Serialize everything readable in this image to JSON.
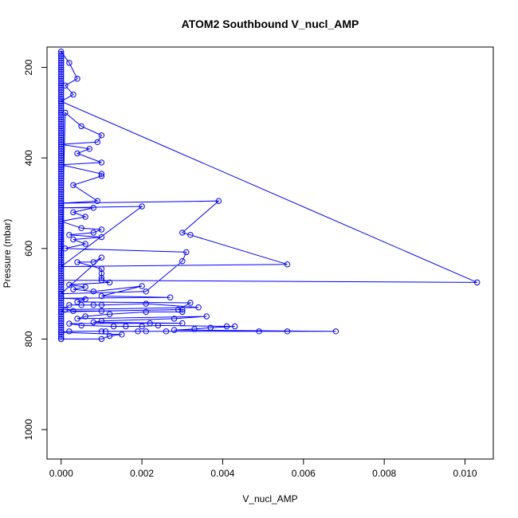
{
  "chart_data": {
    "type": "line",
    "title": "ATOM2 Southbound V_nucl_AMP",
    "xlabel": "V_nucl_AMP",
    "ylabel": "Pressure (mbar)",
    "xlim": [
      -0.00035,
      0.0107
    ],
    "ylim": [
      1065,
      155
    ],
    "y_inverted": true,
    "x_ticks": [
      0.0,
      0.002,
      0.004,
      0.006,
      0.008,
      0.01
    ],
    "x_tick_labels": [
      "0.000",
      "0.002",
      "0.004",
      "0.006",
      "0.008",
      "0.010"
    ],
    "y_ticks": [
      200,
      400,
      600,
      800,
      1000
    ],
    "y_tick_labels": [
      "200",
      "400",
      "600",
      "800",
      "1000"
    ],
    "grid": false,
    "series": [
      {
        "color": "#0000ff",
        "marker": "open-circle",
        "points": [
          [
            0.0,
            800
          ],
          [
            0.0,
            795
          ],
          [
            0.0,
            790
          ],
          [
            0.0,
            785
          ],
          [
            0.0,
            780
          ],
          [
            0.0,
            775
          ],
          [
            0.0,
            770
          ],
          [
            0.0,
            765
          ],
          [
            0.0,
            760
          ],
          [
            0.0,
            755
          ],
          [
            0.0,
            750
          ],
          [
            0.0,
            745
          ],
          [
            0.0,
            740
          ],
          [
            0.0,
            735
          ],
          [
            0.0,
            730
          ],
          [
            0.0,
            725
          ],
          [
            0.0,
            720
          ],
          [
            0.0,
            715
          ],
          [
            0.0,
            710
          ],
          [
            0.0,
            705
          ],
          [
            0.0,
            700
          ],
          [
            0.0,
            695
          ],
          [
            0.0,
            690
          ],
          [
            0.0,
            685
          ],
          [
            0.0,
            680
          ],
          [
            0.0,
            675
          ],
          [
            0.0,
            670
          ],
          [
            0.0,
            665
          ],
          [
            0.0,
            660
          ],
          [
            0.0,
            655
          ],
          [
            0.0,
            650
          ],
          [
            0.0,
            645
          ],
          [
            0.0,
            640
          ],
          [
            0.0,
            635
          ],
          [
            0.0,
            630
          ],
          [
            0.0,
            625
          ],
          [
            0.0,
            620
          ],
          [
            0.0,
            615
          ],
          [
            0.0,
            610
          ],
          [
            0.0,
            605
          ],
          [
            0.0,
            600
          ],
          [
            0.0,
            595
          ],
          [
            0.0,
            590
          ],
          [
            0.0,
            585
          ],
          [
            0.0,
            580
          ],
          [
            0.0,
            575
          ],
          [
            0.0,
            570
          ],
          [
            0.0,
            565
          ],
          [
            0.0,
            560
          ],
          [
            0.0,
            555
          ],
          [
            0.0,
            550
          ],
          [
            0.0,
            545
          ],
          [
            0.0,
            540
          ],
          [
            0.0,
            535
          ],
          [
            0.0,
            530
          ],
          [
            0.0,
            525
          ],
          [
            0.0,
            520
          ],
          [
            0.0,
            515
          ],
          [
            0.0,
            510
          ],
          [
            0.0,
            505
          ],
          [
            0.0,
            500
          ],
          [
            0.0,
            495
          ],
          [
            0.0,
            490
          ],
          [
            0.0,
            485
          ],
          [
            0.0,
            480
          ],
          [
            0.0,
            475
          ],
          [
            0.0,
            470
          ],
          [
            0.0,
            465
          ],
          [
            0.0,
            460
          ],
          [
            0.0,
            455
          ],
          [
            0.0,
            450
          ],
          [
            0.0,
            445
          ],
          [
            0.0,
            440
          ],
          [
            0.0,
            435
          ],
          [
            0.0,
            430
          ],
          [
            0.0,
            425
          ],
          [
            0.0,
            420
          ],
          [
            0.0,
            415
          ],
          [
            0.0,
            410
          ],
          [
            0.0,
            405
          ],
          [
            0.0,
            400
          ],
          [
            0.0,
            395
          ],
          [
            0.0,
            390
          ],
          [
            0.0,
            385
          ],
          [
            0.0,
            380
          ],
          [
            0.0,
            375
          ],
          [
            0.0,
            370
          ],
          [
            0.0,
            365
          ],
          [
            0.0,
            360
          ],
          [
            0.0,
            355
          ],
          [
            0.0,
            350
          ],
          [
            0.0,
            345
          ],
          [
            0.0,
            340
          ],
          [
            0.0,
            335
          ],
          [
            0.0,
            330
          ],
          [
            0.0,
            325
          ],
          [
            0.0,
            320
          ],
          [
            0.0,
            315
          ],
          [
            0.0,
            310
          ],
          [
            0.0,
            305
          ],
          [
            0.0,
            300
          ],
          [
            0.0,
            295
          ],
          [
            0.0,
            290
          ],
          [
            0.0,
            285
          ],
          [
            0.0,
            280
          ],
          [
            0.0,
            275
          ],
          [
            0.0,
            270
          ],
          [
            0.0,
            265
          ],
          [
            0.0,
            260
          ],
          [
            0.0,
            255
          ],
          [
            0.0,
            250
          ],
          [
            0.0,
            245
          ],
          [
            0.0,
            240
          ],
          [
            0.0,
            235
          ],
          [
            0.0,
            230
          ],
          [
            0.0,
            225
          ],
          [
            0.0,
            220
          ],
          [
            0.0,
            215
          ],
          [
            0.0,
            210
          ],
          [
            0.0,
            205
          ],
          [
            0.0,
            200
          ],
          [
            0.0,
            195
          ],
          [
            0.0,
            190
          ],
          [
            0.0,
            185
          ],
          [
            0.0,
            180
          ],
          [
            0.0,
            175
          ],
          [
            0.0,
            170
          ],
          [
            0.0,
            165
          ],
          [
            0.0002,
            190
          ],
          [
            0.0004,
            225
          ],
          [
            0.0001,
            240
          ],
          [
            0.0003,
            260
          ],
          [
            0.0,
            275
          ],
          [
            0.0103,
            675
          ],
          [
            0.0,
            670
          ],
          [
            0.0001,
            300
          ],
          [
            0.0005,
            330
          ],
          [
            0.001,
            350
          ],
          [
            0.0009,
            365
          ],
          [
            0.0,
            370
          ],
          [
            0.0007,
            380
          ],
          [
            0.0004,
            390
          ],
          [
            0.001,
            410
          ],
          [
            0.0,
            415
          ],
          [
            0.001,
            435
          ],
          [
            0.001,
            440
          ],
          [
            0.0003,
            460
          ],
          [
            0.0009,
            495
          ],
          [
            0.0,
            500
          ],
          [
            0.0039,
            495
          ],
          [
            0.003,
            565
          ],
          [
            0.0032,
            570
          ],
          [
            0.0056,
            635
          ],
          [
            0.0,
            640
          ],
          [
            0.002,
            507
          ],
          [
            0.0,
            510
          ],
          [
            0.0008,
            510
          ],
          [
            0.0003,
            520
          ],
          [
            0.0006,
            530
          ],
          [
            0.0,
            540
          ],
          [
            0.0005,
            555
          ],
          [
            0.001,
            558
          ],
          [
            0.0008,
            565
          ],
          [
            0.0002,
            570
          ],
          [
            0.001,
            575
          ],
          [
            0.0003,
            580
          ],
          [
            0.0006,
            590
          ],
          [
            0.0001,
            600
          ],
          [
            0.0031,
            608
          ],
          [
            0.003,
            628
          ],
          [
            0.0021,
            695
          ],
          [
            0.0,
            700
          ],
          [
            0.001,
            620
          ],
          [
            0.0008,
            630
          ],
          [
            0.0004,
            630
          ],
          [
            0.001,
            645
          ],
          [
            0.001,
            655
          ],
          [
            0.001,
            665
          ],
          [
            0.001,
            670
          ],
          [
            0.0012,
            675
          ],
          [
            0.0002,
            680
          ],
          [
            0.0006,
            685
          ],
          [
            0.0003,
            690
          ],
          [
            0.0008,
            695
          ],
          [
            0.002,
            683
          ],
          [
            0.001,
            705
          ],
          [
            0.0027,
            708
          ],
          [
            0.0,
            710
          ],
          [
            0.0006,
            712
          ],
          [
            0.0004,
            718
          ],
          [
            0.0032,
            720
          ],
          [
            0.0029,
            735
          ],
          [
            0.0,
            740
          ],
          [
            0.0002,
            725
          ],
          [
            0.0005,
            725
          ],
          [
            0.0008,
            725
          ],
          [
            0.001,
            725
          ],
          [
            0.0021,
            722
          ],
          [
            0.0034,
            730
          ],
          [
            0.0001,
            735
          ],
          [
            0.0003,
            738
          ],
          [
            0.001,
            738
          ],
          [
            0.003,
            735
          ],
          [
            0.003,
            740
          ],
          [
            0.0021,
            740
          ],
          [
            0.0012,
            745
          ],
          [
            0.0006,
            750
          ],
          [
            0.0004,
            755
          ],
          [
            0.0036,
            750
          ],
          [
            0.0028,
            755
          ],
          [
            0.001,
            760
          ],
          [
            0.0008,
            763
          ],
          [
            0.003,
            765
          ],
          [
            0.0022,
            765
          ],
          [
            0.0002,
            766
          ],
          [
            0.0005,
            770
          ],
          [
            0.0013,
            772
          ],
          [
            0.0016,
            772
          ],
          [
            0.002,
            772
          ],
          [
            0.0024,
            770
          ],
          [
            0.0041,
            772
          ],
          [
            0.0043,
            772
          ],
          [
            0.0037,
            775
          ],
          [
            0.0033,
            778
          ],
          [
            0.0028,
            780
          ],
          [
            0.0068,
            783
          ],
          [
            0.0056,
            783
          ],
          [
            0.0049,
            783
          ],
          [
            0.0026,
            783
          ],
          [
            0.0021,
            783
          ],
          [
            0.0019,
            783
          ],
          [
            0.0011,
            783
          ],
          [
            0.001,
            783
          ],
          [
            0.0002,
            783
          ],
          [
            0.0,
            785
          ],
          [
            0.0015,
            790
          ],
          [
            0.0012,
            793
          ],
          [
            0.001,
            800
          ],
          [
            0.0,
            800
          ]
        ]
      }
    ]
  }
}
